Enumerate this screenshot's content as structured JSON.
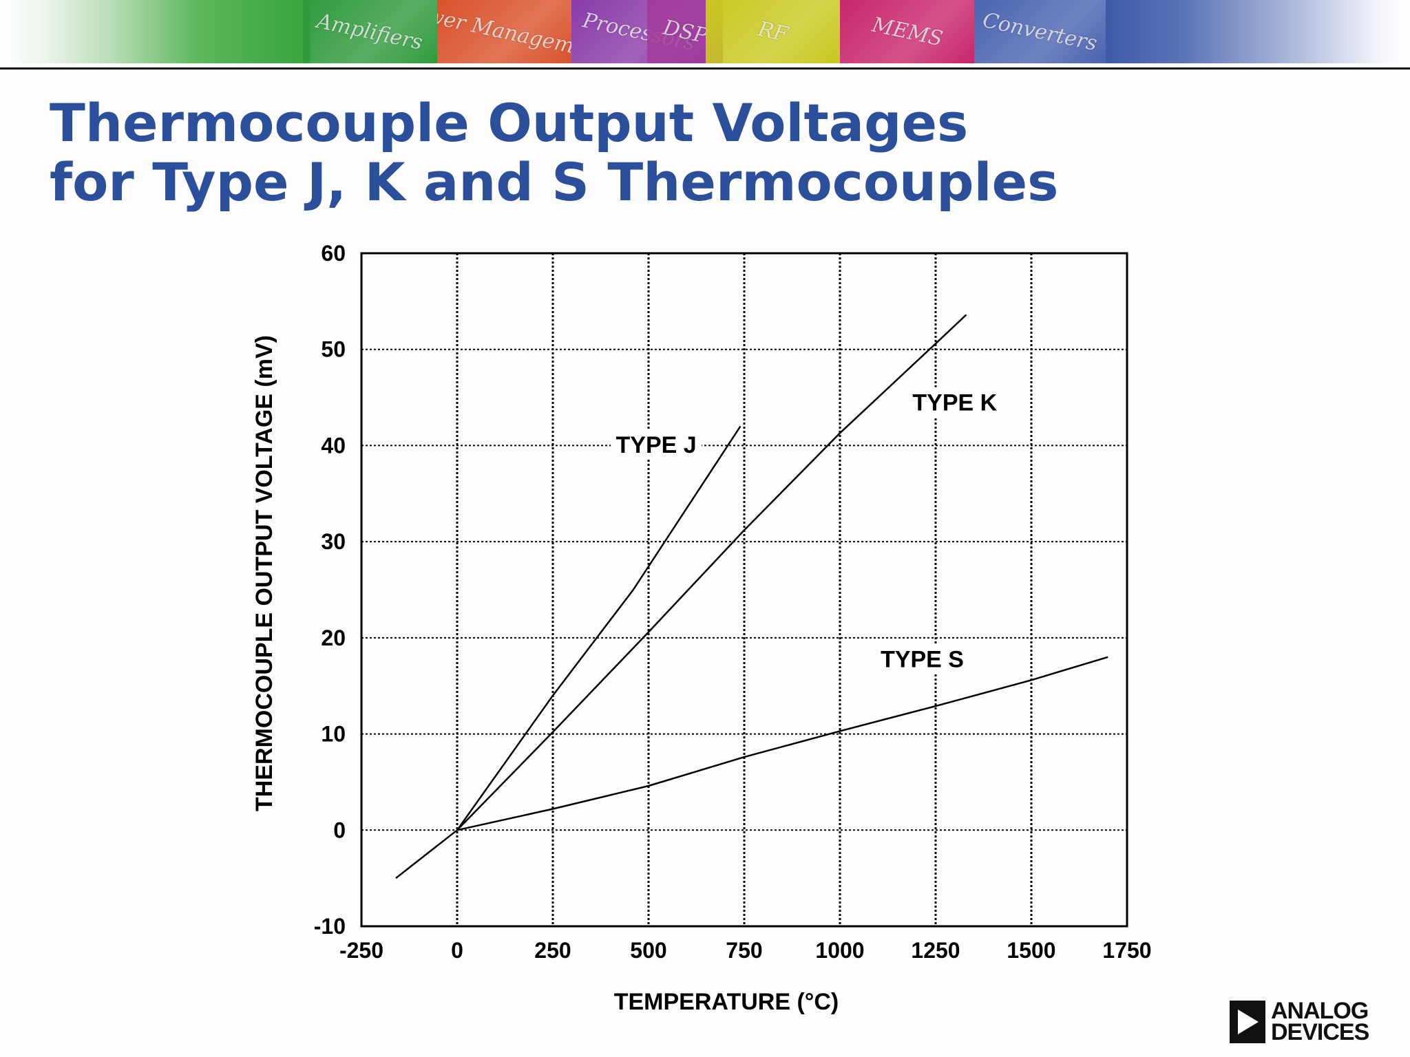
{
  "banner": {
    "tiles": [
      {
        "label": "Amplifiers",
        "color": "#2f9a3c"
      },
      {
        "label": "Power Management",
        "color": "#d9522a"
      },
      {
        "label": "Processors",
        "color": "#8a3aa8"
      },
      {
        "label": "DSP",
        "color": "#a23c9c"
      },
      {
        "label": "RF",
        "color": "#c9c81f"
      },
      {
        "label": "MEMS",
        "color": "#c8266a"
      },
      {
        "label": "Converters",
        "color": "#4b63b0"
      }
    ]
  },
  "title": {
    "line1": "Thermocouple Output Voltages",
    "line2": "for Type J, K and S Thermocouples",
    "color": "#2c4f9c"
  },
  "logo": {
    "line1": "ANALOG",
    "line2": "DEVICES"
  },
  "chart_data": {
    "type": "line",
    "title": "",
    "xlabel": "TEMPERATURE (°C)",
    "ylabel": "THERMOCOUPLE OUTPUT VOLTAGE (mV)",
    "xlim": [
      -250,
      1750
    ],
    "ylim": [
      -10,
      60
    ],
    "xticks": [
      -250,
      0,
      250,
      500,
      750,
      1000,
      1250,
      1500,
      1750
    ],
    "yticks": [
      -10,
      0,
      10,
      20,
      30,
      40,
      50,
      60
    ],
    "grid": true,
    "legend": "none (series labeled directly on plot)",
    "series": [
      {
        "name": "TYPE J",
        "x": [
          0,
          250,
          460,
          740
        ],
        "y": [
          0,
          14,
          25,
          42
        ]
      },
      {
        "name": "TYPE K",
        "x": [
          -160,
          0,
          250,
          500,
          750,
          1000,
          1250,
          1330
        ],
        "y": [
          -5,
          0,
          10.2,
          20.6,
          31.2,
          41.3,
          50.6,
          53.6
        ]
      },
      {
        "name": "TYPE S",
        "x": [
          0,
          250,
          500,
          750,
          1000,
          1250,
          1500,
          1700
        ],
        "y": [
          0,
          2.2,
          4.6,
          7.6,
          10.3,
          12.9,
          15.6,
          18
        ]
      }
    ],
    "annotations": [
      {
        "text": "TYPE J",
        "x": 520,
        "y": 40.1
      },
      {
        "text": "TYPE K",
        "x": 1300,
        "y": 44.5
      },
      {
        "text": "TYPE S",
        "x": 1215,
        "y": 17.8
      }
    ]
  }
}
